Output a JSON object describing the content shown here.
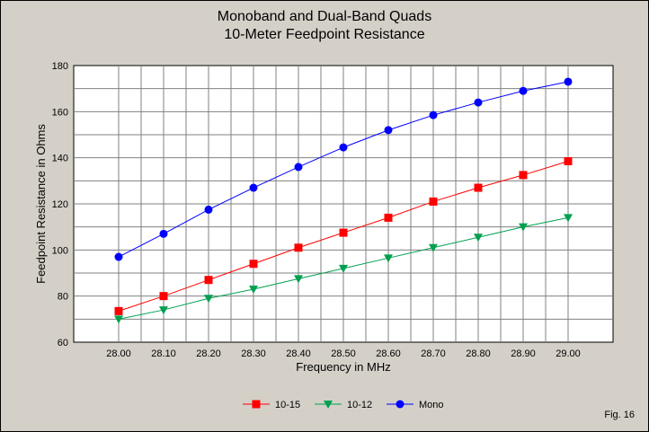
{
  "figure_label": "Fig. 16",
  "chart_data": {
    "type": "line",
    "title": "Monoband and Dual-Band Quads",
    "subtitle": "10-Meter Feedpoint Resistance",
    "xlabel": "Frequency in MHz",
    "ylabel": "Feedpoint Resistance in Ohms",
    "x": [
      28.0,
      28.1,
      28.2,
      28.3,
      28.4,
      28.5,
      28.6,
      28.7,
      28.8,
      28.9,
      29.0
    ],
    "x_tick_labels": [
      "28.00",
      "28.10",
      "28.20",
      "28.30",
      "28.40",
      "28.50",
      "28.60",
      "28.70",
      "28.80",
      "28.90",
      "29.00"
    ],
    "y_ticks": [
      60,
      80,
      100,
      120,
      140,
      160,
      180
    ],
    "xlim": [
      27.9,
      29.1
    ],
    "ylim": [
      60,
      180
    ],
    "grid": true,
    "legend_position": "bottom",
    "series": [
      {
        "name": "10-15",
        "color": "#ff0000",
        "marker": "square",
        "values": [
          73.5,
          80,
          87,
          94,
          101,
          107.5,
          114,
          121,
          127,
          132.5,
          138.5
        ]
      },
      {
        "name": "10-12",
        "color": "#00a050",
        "marker": "triangle-down",
        "values": [
          70,
          74,
          79,
          83,
          87.5,
          92,
          96.5,
          101,
          105.5,
          110,
          114
        ]
      },
      {
        "name": "Mono",
        "color": "#0000ff",
        "marker": "circle",
        "values": [
          97,
          107,
          117.5,
          127,
          136,
          144.5,
          152,
          158.5,
          164,
          169,
          173
        ]
      }
    ]
  }
}
